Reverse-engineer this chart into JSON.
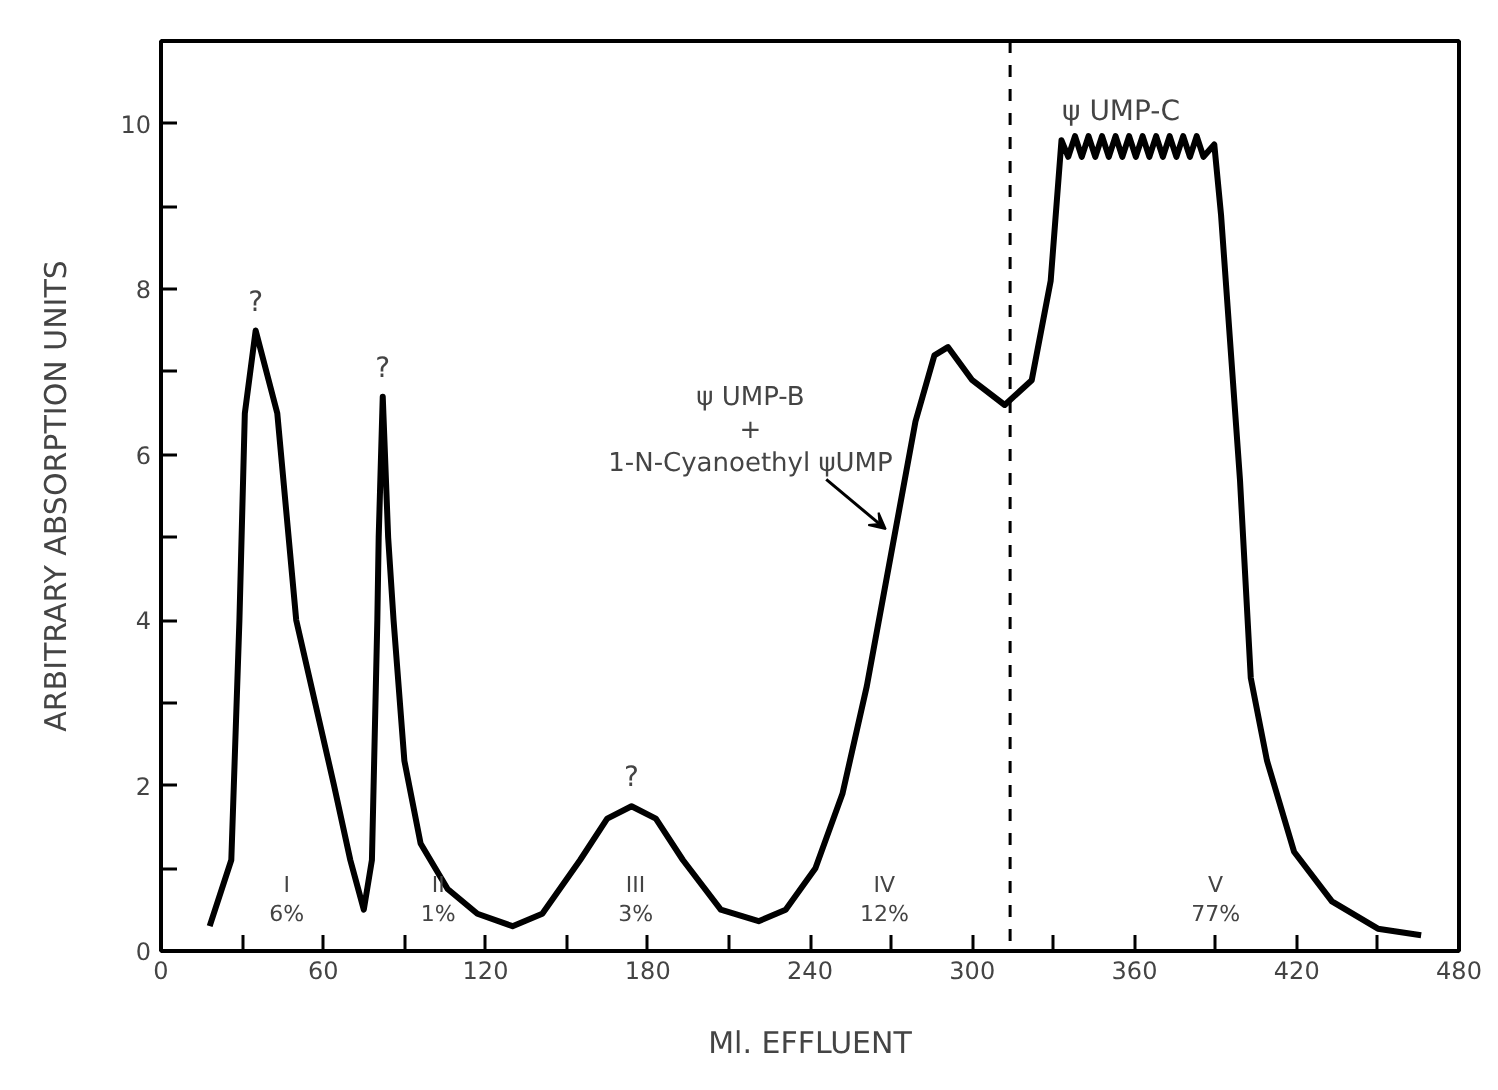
{
  "chart_data": {
    "type": "line",
    "xlabel": "Ml. EFFLUENT",
    "ylabel": "ARBITRARY ABSORPTION UNITS",
    "xlim": [
      0,
      480
    ],
    "ylim": [
      0,
      11
    ],
    "xticks": [
      0,
      {
        "value": 30,
        "label": null
      },
      60,
      {
        "value": 90,
        "label": null
      },
      120,
      {
        "value": 150,
        "label": null
      },
      180,
      {
        "value": 210,
        "label": null
      },
      240,
      {
        "value": 270,
        "label": null
      },
      300,
      {
        "value": 330,
        "label": null
      },
      360,
      {
        "value": 390,
        "label": null
      },
      420,
      {
        "value": 450,
        "label": null
      },
      480
    ],
    "yticks": [
      0,
      {
        "value": 1,
        "label": null
      },
      2,
      {
        "value": 3,
        "label": null
      },
      4,
      {
        "value": 5,
        "label": null
      },
      6,
      {
        "value": 7,
        "label": null
      },
      8,
      {
        "value": 9,
        "label": null
      },
      10
    ],
    "grid": false,
    "marker": "none",
    "line_style": "solid",
    "series": [
      {
        "color": "#000000",
        "x": [
          18,
          26,
          29,
          31,
          35,
          43,
          50,
          57,
          64,
          70,
          75,
          78,
          80,
          80.5,
          82,
          84,
          86,
          90,
          96,
          106,
          117,
          130,
          141,
          155,
          165,
          174,
          183,
          193,
          207,
          221,
          231,
          242,
          252,
          261,
          270,
          279,
          286,
          291,
          300,
          312,
          322,
          329,
          333,
          335.5,
          338,
          340.5,
          343,
          345.5,
          348,
          350.5,
          353,
          355.5,
          358,
          360.5,
          363,
          365.5,
          368,
          370.5,
          373,
          375.5,
          378,
          380.5,
          383,
          385.5,
          389.5,
          392,
          399,
          403,
          409,
          419,
          433,
          450,
          466
        ],
        "values": [
          0.3,
          1.1,
          4.0,
          6.5,
          7.5,
          6.5,
          4.0,
          3.0,
          2.0,
          1.1,
          0.5,
          1.1,
          4.0,
          5.0,
          6.7,
          5.0,
          4.0,
          2.3,
          1.3,
          0.75,
          0.45,
          0.3,
          0.45,
          1.1,
          1.6,
          1.75,
          1.6,
          1.1,
          0.5,
          0.36,
          0.5,
          1.0,
          1.9,
          3.2,
          4.8,
          6.4,
          7.2,
          7.3,
          6.9,
          6.6,
          6.9,
          8.1,
          9.8,
          9.6,
          9.85,
          9.6,
          9.85,
          9.6,
          9.85,
          9.6,
          9.85,
          9.6,
          9.85,
          9.6,
          9.85,
          9.6,
          9.85,
          9.6,
          9.85,
          9.6,
          9.85,
          9.6,
          9.85,
          9.6,
          9.75,
          8.9,
          5.7,
          3.3,
          2.3,
          1.2,
          0.6,
          0.27,
          0.19
        ]
      }
    ],
    "ref_lines": [
      {
        "axis": "x",
        "value": 314,
        "label": null,
        "line_style": "dashed",
        "color": "#000000"
      }
    ],
    "annotations": [
      {
        "text": "?",
        "x": 35,
        "y": 7.5
      },
      {
        "text": "?",
        "x": 82,
        "y": 6.7
      },
      {
        "text": "?",
        "x": 174,
        "y": 1.75
      },
      "I\n6%",
      "II\n1%",
      "III\n3%",
      "IV\n12%",
      "V\n77%",
      {
        "text": "ψ UMP-B\n+\n1-N-Cyanoethyl ψUMP",
        "x": 268,
        "y": 5.1
      },
      {
        "text": "ψ UMP-C",
        "x": 355,
        "y": 9.8
      }
    ]
  }
}
